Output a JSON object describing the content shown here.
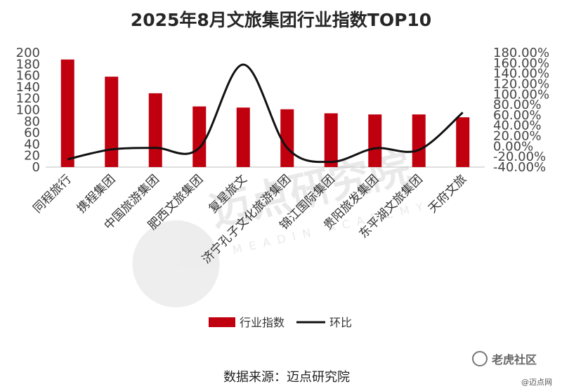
{
  "chart_data": {
    "type": "bar",
    "title": "2025年8月文旅集团行业指数TOP10",
    "categories": [
      "同程旅行",
      "携程集团",
      "中国旅游集团",
      "肥西文旅集团",
      "复星旅文",
      "济宁孔子文化旅游集团",
      "锦江国际集团",
      "贵阳旅发集团",
      "东平湖文旅集团",
      "天府文旅"
    ],
    "series": [
      {
        "name": "行业指数",
        "axis": "left",
        "values": [
          188,
          158,
          129,
          106,
          104,
          101,
          94,
          92,
          92,
          87
        ]
      },
      {
        "name": "环比",
        "axis": "right",
        "type": "line",
        "values": [
          -25,
          -6,
          -3,
          -3,
          157,
          -3,
          -30,
          -4,
          -7,
          65
        ]
      }
    ],
    "y_left": {
      "ylim": [
        0,
        200
      ],
      "ticks": [
        "0",
        "20",
        "40",
        "60",
        "80",
        "100",
        "120",
        "140",
        "160",
        "180",
        "200"
      ]
    },
    "y_right": {
      "ylim": [
        -40,
        180
      ],
      "ticks": [
        "-40.00%",
        "-20.00%",
        "0.00%",
        "20.00%",
        "40.00%",
        "60.00%",
        "80.00%",
        "100.00%",
        "120.00%",
        "140.00%",
        "160.00%",
        "180.00%"
      ]
    },
    "legend_placement": "bottom-center",
    "colors": {
      "bar": "#c0000f",
      "line": "#111111",
      "axis": "#bfbfbf"
    }
  },
  "source_text": "数据来源：迈点研究院",
  "watermark": {
    "brand": "迈点研究院",
    "sub": "MEADIN ACADEMY"
  },
  "corner_marks": {
    "site1": "老虎社区",
    "site2": "@迈点网"
  }
}
